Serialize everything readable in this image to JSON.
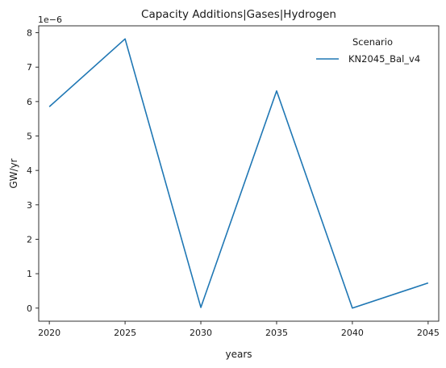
{
  "chart_data": {
    "type": "line",
    "title": "Capacity Additions|Gases|Hydrogen",
    "xlabel": "years",
    "ylabel": "GW/yr",
    "y_offset_label": "1e−6",
    "x": [
      2020,
      2025,
      2030,
      2035,
      2040,
      2045
    ],
    "x_ticks": [
      2020,
      2025,
      2030,
      2035,
      2040,
      2045
    ],
    "xlim": [
      2019.3,
      2045.7
    ],
    "y_ticks": [
      0,
      1,
      2,
      3,
      4,
      5,
      6,
      7,
      8
    ],
    "ylim": [
      -0.38,
      8.2
    ],
    "grid": false,
    "legend": {
      "title": "Scenario",
      "placement": "top-right"
    },
    "series": [
      {
        "name": "KN2045_Bal_v4",
        "color": "#1f77b4",
        "values": [
          5.85,
          7.82,
          0.02,
          6.31,
          0.0,
          0.73
        ]
      }
    ]
  }
}
